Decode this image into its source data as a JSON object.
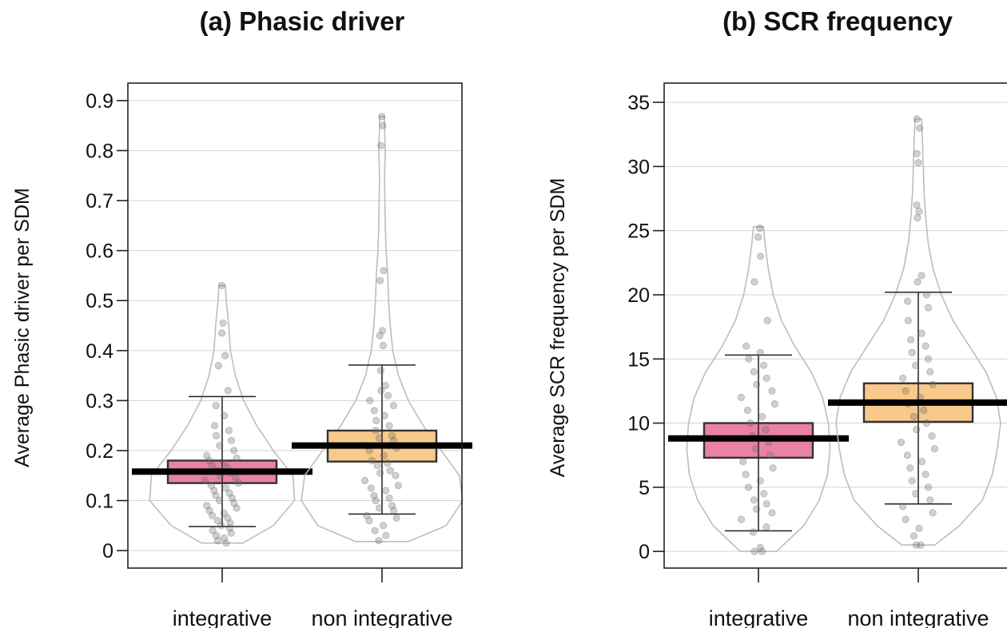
{
  "chart_data": [
    {
      "type": "pirate",
      "title": "(a) Phasic driver",
      "xlabel": "",
      "ylabel": "Average Phasic driver per SDM",
      "categories": [
        "integrative",
        "non integrative"
      ],
      "yticks": [
        "0",
        "0.1",
        "0.2",
        "0.3",
        "0.4",
        "0.5",
        "0.6",
        "0.7",
        "0.8",
        "0.9"
      ],
      "ylim": [
        -0.035,
        0.935
      ],
      "grid": true,
      "colors": [
        "#e981a8",
        "#f8c98a"
      ],
      "groups": [
        {
          "name": "integrative",
          "mean": 0.158,
          "box_low": 0.135,
          "box_high": 0.18,
          "whisker_low": 0.048,
          "whisker_high": 0.308,
          "density": [
            [
              0.015,
              0.25
            ],
            [
              0.05,
              0.62
            ],
            [
              0.1,
              0.88
            ],
            [
              0.15,
              0.86
            ],
            [
              0.2,
              0.62
            ],
            [
              0.25,
              0.42
            ],
            [
              0.3,
              0.26
            ],
            [
              0.35,
              0.16
            ],
            [
              0.4,
              0.1
            ],
            [
              0.45,
              0.08
            ],
            [
              0.5,
              0.05
            ],
            [
              0.53,
              0.04
            ]
          ],
          "points": [
            0.015,
            0.02,
            0.025,
            0.03,
            0.035,
            0.04,
            0.045,
            0.05,
            0.055,
            0.06,
            0.065,
            0.07,
            0.075,
            0.08,
            0.085,
            0.09,
            0.095,
            0.1,
            0.105,
            0.11,
            0.115,
            0.12,
            0.125,
            0.13,
            0.135,
            0.14,
            0.145,
            0.15,
            0.155,
            0.16,
            0.165,
            0.17,
            0.175,
            0.18,
            0.185,
            0.19,
            0.2,
            0.21,
            0.22,
            0.23,
            0.24,
            0.25,
            0.27,
            0.29,
            0.32,
            0.37,
            0.39,
            0.435,
            0.455,
            0.53
          ]
        },
        {
          "name": "non integrative",
          "mean": 0.21,
          "box_low": 0.178,
          "box_high": 0.24,
          "whisker_low": 0.073,
          "whisker_high": 0.371,
          "density": [
            [
              0.018,
              0.32
            ],
            [
              0.05,
              0.78
            ],
            [
              0.1,
              0.98
            ],
            [
              0.15,
              0.94
            ],
            [
              0.2,
              0.72
            ],
            [
              0.25,
              0.5
            ],
            [
              0.3,
              0.32
            ],
            [
              0.35,
              0.2
            ],
            [
              0.4,
              0.13
            ],
            [
              0.45,
              0.1
            ],
            [
              0.5,
              0.08
            ],
            [
              0.55,
              0.07
            ],
            [
              0.6,
              0.05
            ],
            [
              0.65,
              0.04
            ],
            [
              0.7,
              0.035
            ],
            [
              0.75,
              0.03
            ],
            [
              0.8,
              0.04
            ],
            [
              0.85,
              0.03
            ],
            [
              0.868,
              0.03
            ]
          ],
          "points": [
            0.02,
            0.03,
            0.04,
            0.05,
            0.06,
            0.065,
            0.07,
            0.08,
            0.085,
            0.09,
            0.1,
            0.105,
            0.11,
            0.12,
            0.125,
            0.13,
            0.14,
            0.15,
            0.155,
            0.16,
            0.17,
            0.175,
            0.18,
            0.19,
            0.2,
            0.205,
            0.21,
            0.22,
            0.225,
            0.23,
            0.24,
            0.25,
            0.26,
            0.27,
            0.28,
            0.29,
            0.3,
            0.31,
            0.32,
            0.33,
            0.36,
            0.41,
            0.43,
            0.44,
            0.54,
            0.56,
            0.81,
            0.85,
            0.868
          ]
        }
      ]
    },
    {
      "type": "pirate",
      "title": "(b) SCR frequency",
      "xlabel": "",
      "ylabel": "Average SCR frequency per SDM",
      "categories": [
        "integrative",
        "non integrative"
      ],
      "yticks": [
        "0",
        "5",
        "10",
        "15",
        "20",
        "25",
        "30",
        "35"
      ],
      "ylim": [
        -1.3,
        36.5
      ],
      "grid": true,
      "colors": [
        "#e981a8",
        "#f8c98a"
      ],
      "groups": [
        {
          "name": "integrative",
          "mean": 8.8,
          "box_low": 7.3,
          "box_high": 10.0,
          "whisker_low": 1.6,
          "whisker_high": 15.3,
          "density": [
            [
              0,
              0.22
            ],
            [
              2,
              0.55
            ],
            [
              4,
              0.74
            ],
            [
              6,
              0.84
            ],
            [
              8,
              0.87
            ],
            [
              10,
              0.85
            ],
            [
              12,
              0.78
            ],
            [
              14,
              0.64
            ],
            [
              16,
              0.44
            ],
            [
              18,
              0.28
            ],
            [
              20,
              0.18
            ],
            [
              22,
              0.12
            ],
            [
              24,
              0.08
            ],
            [
              25.3,
              0.06
            ]
          ],
          "points": [
            0,
            0,
            0.3,
            1.5,
            1.9,
            2.5,
            3.0,
            3.3,
            3.7,
            4.0,
            4.5,
            5.0,
            5.5,
            6.0,
            6.5,
            7.0,
            7.5,
            8.0,
            8.5,
            9.0,
            9.5,
            10.0,
            10.5,
            11.0,
            11.5,
            12.0,
            12.5,
            13.0,
            13.5,
            14.0,
            14.5,
            15.0,
            15.5,
            16.0,
            18.0,
            21.0,
            23.0,
            24.5,
            25.2
          ]
        },
        {
          "name": "non integrative",
          "mean": 11.6,
          "box_low": 10.1,
          "box_high": 13.1,
          "whisker_low": 3.7,
          "whisker_high": 20.2,
          "density": [
            [
              0.5,
              0.2
            ],
            [
              2,
              0.5
            ],
            [
              4,
              0.78
            ],
            [
              6,
              0.9
            ],
            [
              8,
              0.96
            ],
            [
              10,
              1.0
            ],
            [
              12,
              0.95
            ],
            [
              14,
              0.82
            ],
            [
              16,
              0.62
            ],
            [
              18,
              0.42
            ],
            [
              20,
              0.28
            ],
            [
              22,
              0.18
            ],
            [
              24,
              0.12
            ],
            [
              26,
              0.09
            ],
            [
              28,
              0.07
            ],
            [
              30,
              0.06
            ],
            [
              32,
              0.05
            ],
            [
              33.7,
              0.04
            ]
          ],
          "points": [
            0.5,
            0.5,
            1.2,
            1.8,
            2.5,
            3.0,
            3.5,
            4.0,
            4.5,
            5.0,
            5.5,
            6.0,
            6.5,
            7.0,
            7.5,
            8.0,
            8.5,
            9.0,
            9.5,
            10.0,
            10.5,
            11.0,
            11.5,
            12.0,
            12.5,
            13.0,
            13.5,
            14.0,
            14.5,
            15.0,
            15.5,
            16.0,
            16.5,
            17.0,
            18.0,
            19.0,
            19.5,
            20.0,
            21.0,
            21.5,
            26.0,
            26.5,
            27.0,
            30.3,
            31.0,
            33.0,
            33.7
          ]
        }
      ]
    }
  ]
}
